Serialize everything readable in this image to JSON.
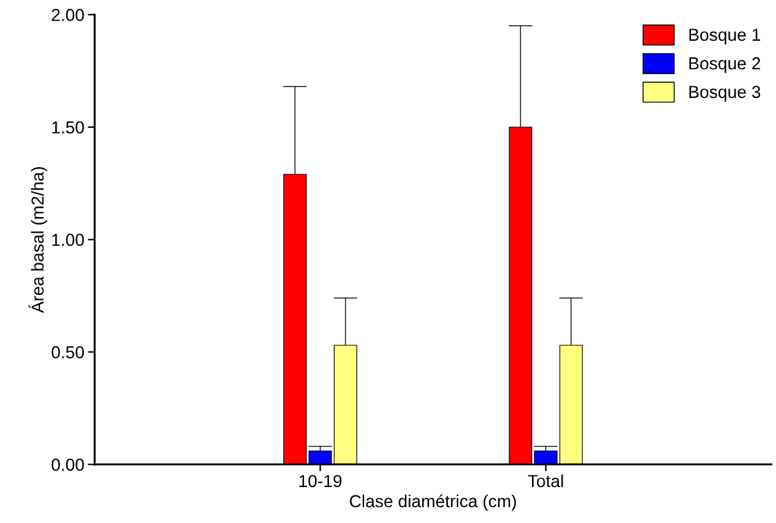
{
  "chart_data": {
    "type": "bar",
    "xlabel": "Clase diamétrica (cm)",
    "ylabel": "Área basal (m2/ha)",
    "categories": [
      "10-19",
      "Total"
    ],
    "series": [
      {
        "name": "Bosque 1",
        "color": "#ff0000",
        "values": [
          1.29,
          1.5
        ],
        "errors": [
          [
            1.29,
            1.68
          ],
          [
            1.5,
            1.95
          ]
        ]
      },
      {
        "name": "Bosque 2",
        "color": "#0000ff",
        "values": [
          0.06,
          0.06
        ],
        "errors": [
          [
            0.06,
            0.08
          ],
          [
            0.06,
            0.08
          ]
        ]
      },
      {
        "name": "Bosque 3",
        "color": "#ffff80",
        "values": [
          0.53,
          0.53
        ],
        "errors": [
          [
            0.53,
            0.74
          ],
          [
            0.53,
            0.74
          ]
        ]
      }
    ],
    "ylim": [
      0,
      2
    ],
    "yticks": [
      {
        "value": 0,
        "label": "0.00"
      },
      {
        "value": 0.5,
        "label": "0.50"
      },
      {
        "value": 1,
        "label": "1.00"
      },
      {
        "value": 1.5,
        "label": "1.50"
      },
      {
        "value": 2,
        "label": "2.00"
      }
    ],
    "legend": "top right",
    "grid": false
  }
}
